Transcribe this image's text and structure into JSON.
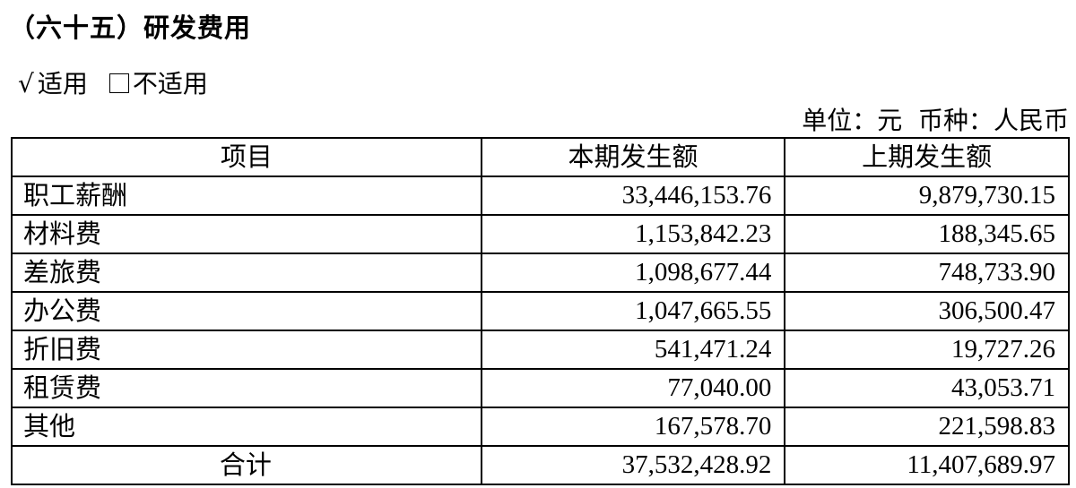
{
  "title": "（六十五）研发费用",
  "applicability": {
    "check_mark": "√",
    "applicable": "适用",
    "not_applicable": "不适用"
  },
  "unit_line": "单位：元  币种：人民币",
  "table": {
    "headers": [
      "项目",
      "本期发生额",
      "上期发生额"
    ],
    "rows": [
      {
        "item": "职工薪酬",
        "current": "33,446,153.76",
        "previous": "9,879,730.15"
      },
      {
        "item": "材料费",
        "current": "1,153,842.23",
        "previous": "188,345.65"
      },
      {
        "item": "差旅费",
        "current": "1,098,677.44",
        "previous": "748,733.90"
      },
      {
        "item": "办公费",
        "current": "1,047,665.55",
        "previous": "306,500.47"
      },
      {
        "item": "折旧费",
        "current": "541,471.24",
        "previous": "19,727.26"
      },
      {
        "item": "租赁费",
        "current": "77,040.00",
        "previous": "43,053.71"
      },
      {
        "item": "其他",
        "current": "167,578.70",
        "previous": "221,598.83"
      }
    ],
    "total": {
      "item": "合计",
      "current": "37,532,428.92",
      "previous": "11,407,689.97"
    }
  }
}
